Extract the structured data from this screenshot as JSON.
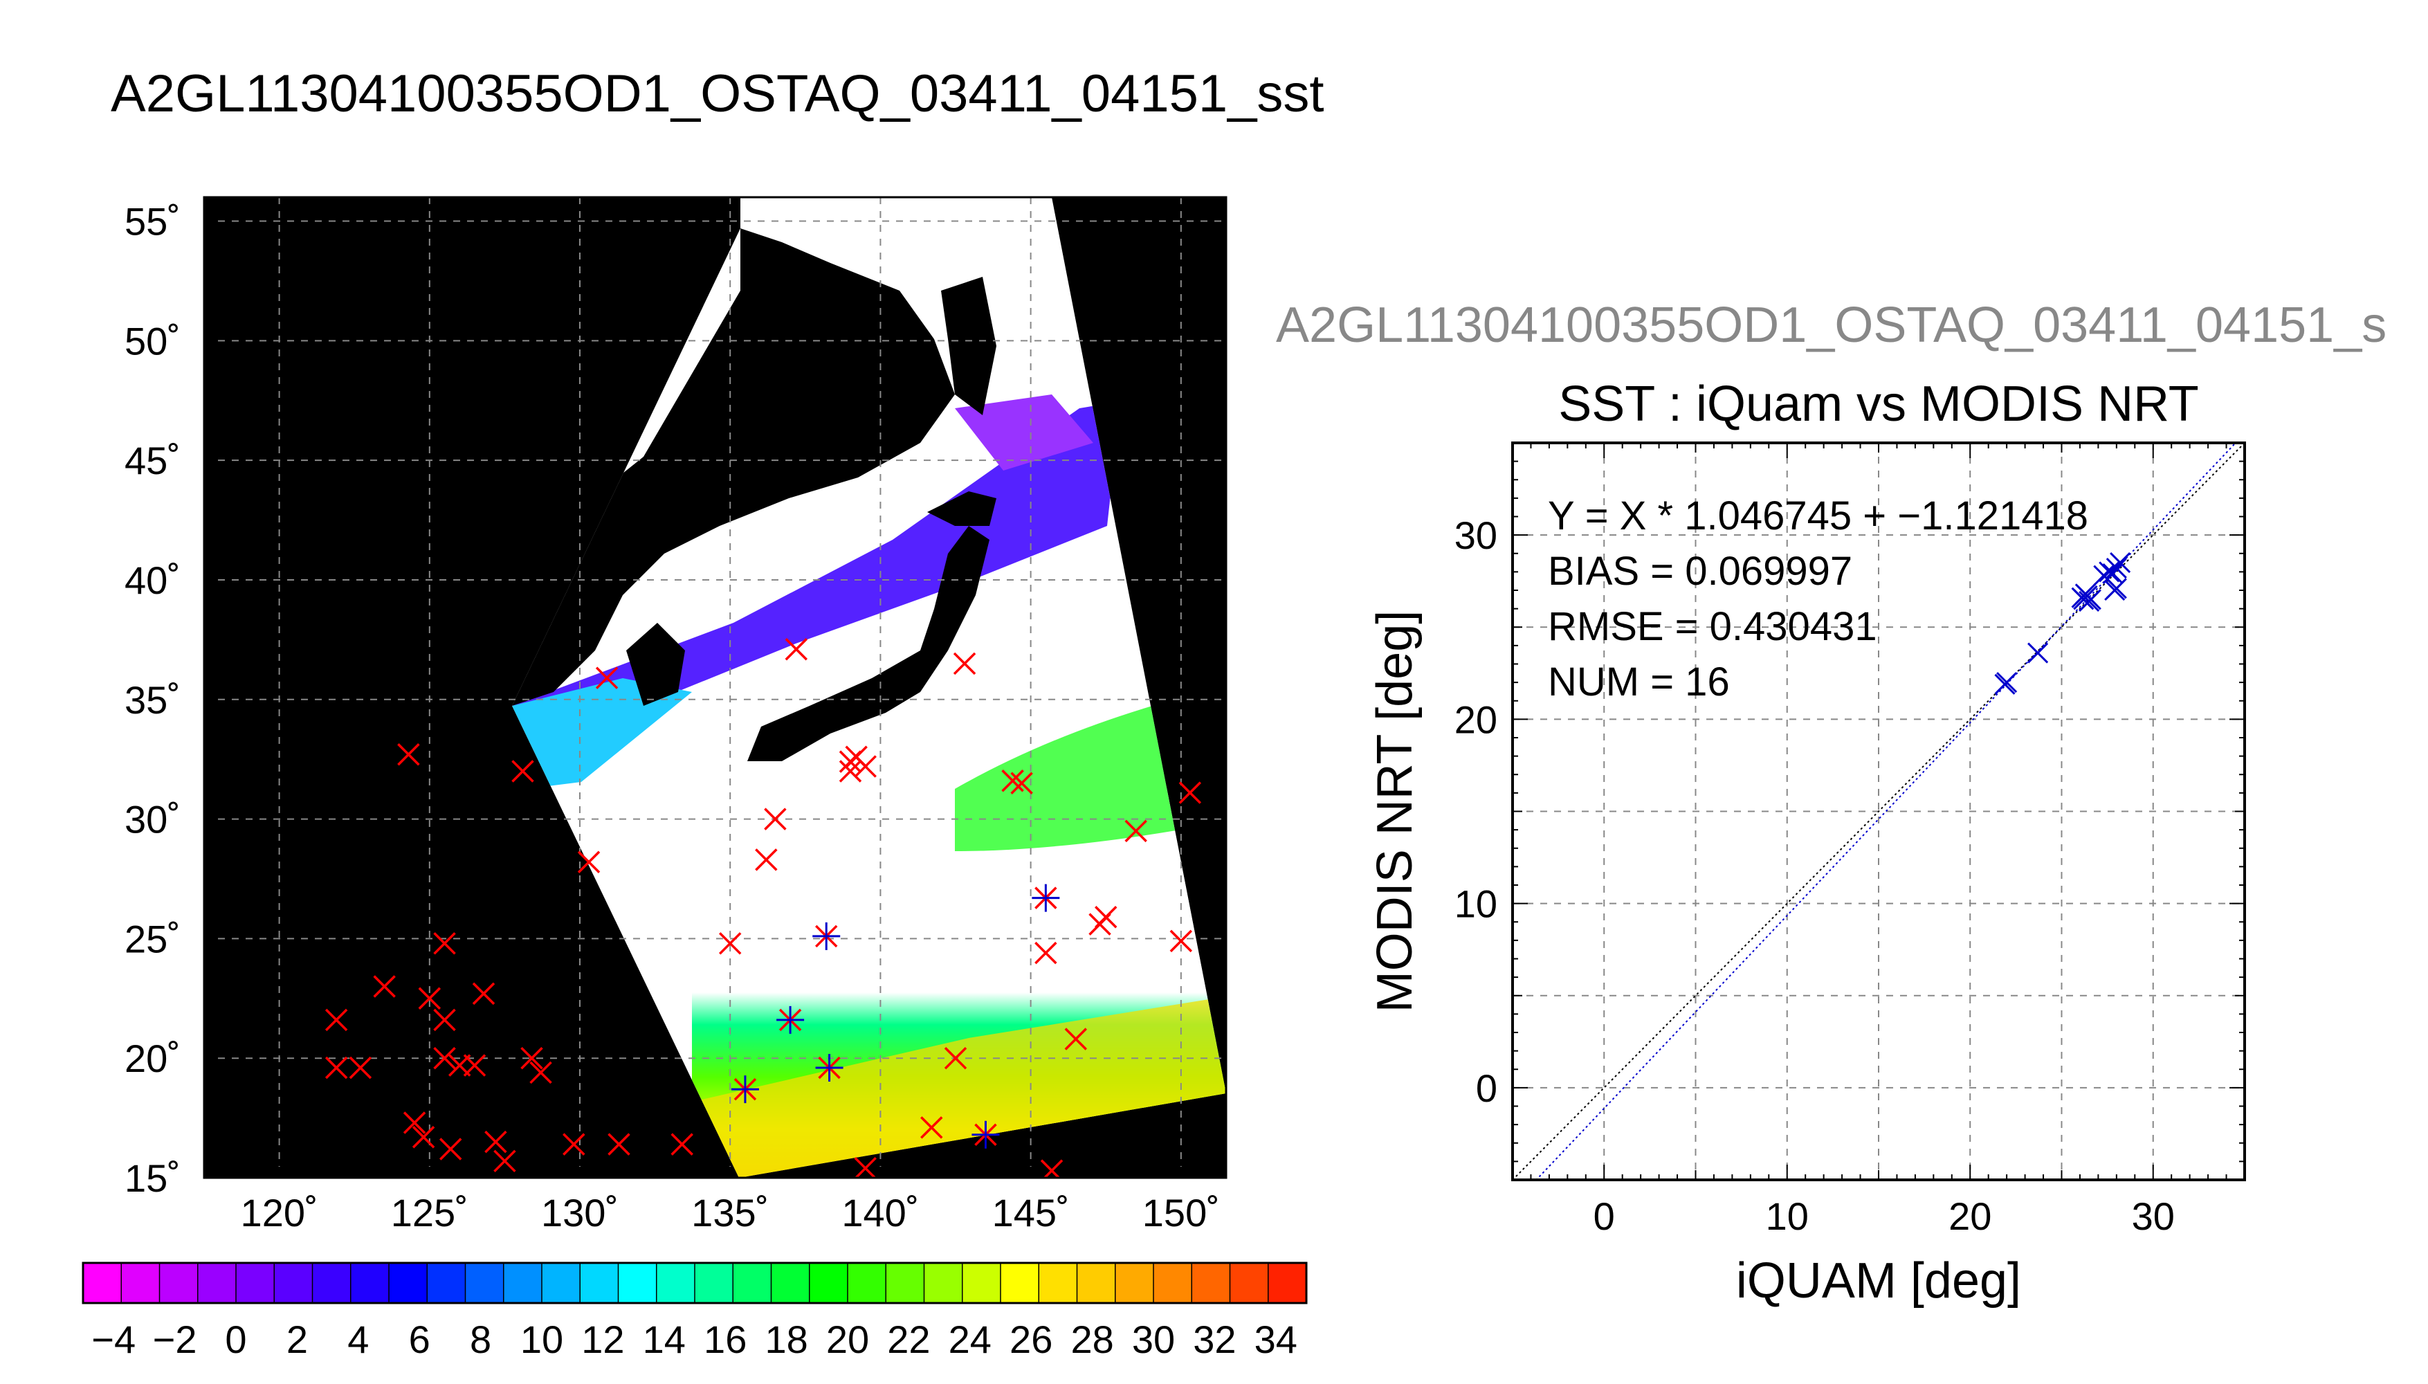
{
  "page_title": "A2GL11304100355OD1_OSTAQ_03411_04151_sst",
  "colors": {
    "match_marker": "#ff0000",
    "qc_marker": "#0000cc",
    "fit_line": "#0000cc",
    "one_to_one_line": "#000000"
  },
  "chart_data": [
    {
      "type": "map",
      "name": "sst-swath-map",
      "lon_ticks": [
        "120˚",
        "125˚",
        "130˚",
        "135˚",
        "140˚",
        "145˚",
        "150˚"
      ],
      "lat_ticks": [
        "15˚",
        "20˚",
        "25˚",
        "30˚",
        "35˚",
        "40˚",
        "45˚",
        "50˚",
        "55˚"
      ],
      "xlim": [
        117.5,
        151.5
      ],
      "ylim": [
        15,
        56
      ],
      "grid": true,
      "background": "black",
      "match_points": [
        [
          121.9,
          21.6
        ],
        [
          121.9,
          19.6
        ],
        [
          122.7,
          19.6
        ],
        [
          123.5,
          23.0
        ],
        [
          124.3,
          32.7
        ],
        [
          124.5,
          17.3
        ],
        [
          124.8,
          16.7
        ],
        [
          125.0,
          22.5
        ],
        [
          125.5,
          24.8
        ],
        [
          125.5,
          21.6
        ],
        [
          125.5,
          20.0
        ],
        [
          125.7,
          16.2
        ],
        [
          126.0,
          19.7
        ],
        [
          126.5,
          19.7
        ],
        [
          126.8,
          22.7
        ],
        [
          127.2,
          16.5
        ],
        [
          127.5,
          15.7
        ],
        [
          128.1,
          32.0
        ],
        [
          128.4,
          20.0
        ],
        [
          128.7,
          19.4
        ],
        [
          129.8,
          16.4
        ],
        [
          130.3,
          28.2
        ],
        [
          130.9,
          35.9
        ],
        [
          131.3,
          16.4
        ],
        [
          133.4,
          16.4
        ],
        [
          135.0,
          24.8
        ],
        [
          135.5,
          18.7
        ],
        [
          136.2,
          28.3
        ],
        [
          136.5,
          30.0
        ],
        [
          137.0,
          21.6
        ],
        [
          137.2,
          37.1
        ],
        [
          138.2,
          25.1
        ],
        [
          138.3,
          19.6
        ],
        [
          139.0,
          32.4
        ],
        [
          139.0,
          32.0
        ],
        [
          139.2,
          32.6
        ],
        [
          139.5,
          32.2
        ],
        [
          139.5,
          15.4
        ],
        [
          141.7,
          17.1
        ],
        [
          142.5,
          20.0
        ],
        [
          142.8,
          36.5
        ],
        [
          143.5,
          16.8
        ],
        [
          144.4,
          31.6
        ],
        [
          144.7,
          31.5
        ],
        [
          145.5,
          26.7
        ],
        [
          145.5,
          24.4
        ],
        [
          145.7,
          15.3
        ],
        [
          146.5,
          20.8
        ],
        [
          147.3,
          25.6
        ],
        [
          147.5,
          25.9
        ],
        [
          148.5,
          29.5
        ],
        [
          150.0,
          24.9
        ],
        [
          150.3,
          31.1
        ]
      ],
      "qc_points": [
        [
          135.5,
          18.7
        ],
        [
          137.0,
          21.6
        ],
        [
          138.2,
          25.1
        ],
        [
          138.3,
          19.6
        ],
        [
          143.5,
          16.8
        ],
        [
          145.5,
          26.7
        ]
      ]
    },
    {
      "type": "colorbar",
      "name": "sst-colorbar",
      "tick_labels": [
        "−4",
        "−2",
        "0",
        "2",
        "4",
        "6",
        "8",
        "10",
        "12",
        "14",
        "16",
        "18",
        "20",
        "22",
        "24",
        "26",
        "28",
        "30",
        "32",
        "34"
      ],
      "range": [
        -5,
        35
      ],
      "colors": [
        "#ff00ff",
        "#e000ff",
        "#bb00ff",
        "#9a00ff",
        "#7a00ff",
        "#5a00ff",
        "#3a00ff",
        "#2000ff",
        "#0000ff",
        "#0030ff",
        "#0060ff",
        "#0090ff",
        "#00b4ff",
        "#00d8ff",
        "#00ffff",
        "#00ffcc",
        "#00ff99",
        "#00ff66",
        "#00ff33",
        "#00ff00",
        "#33ff00",
        "#66ff00",
        "#99ff00",
        "#ccff00",
        "#ffff00",
        "#ffe000",
        "#ffcc00",
        "#ffaa00",
        "#ff8800",
        "#ff6600",
        "#ff4400",
        "#ff2200"
      ]
    },
    {
      "type": "scatter",
      "name": "sst-scatter",
      "super_title": "A2GL11304100355OD1_OSTAQ_03411_04151_s",
      "title": "SST : iQuam vs MODIS NRT",
      "xlabel": "iQUAM [deg]",
      "ylabel": "MODIS NRT [deg]",
      "xlim": [
        -5,
        35
      ],
      "ylim": [
        -5,
        35
      ],
      "xticks": [
        "0",
        "10",
        "20",
        "30"
      ],
      "yticks": [
        "0",
        "10",
        "20",
        "30"
      ],
      "grid": true,
      "stats": [
        "Y = X * 1.046745 + −1.121418",
        "BIAS = 0.069997",
        "RMSE = 0.430431",
        "NUM = 16"
      ],
      "points": [
        [
          21.9,
          21.9
        ],
        [
          22.0,
          22.0
        ],
        [
          23.7,
          23.6
        ],
        [
          26.1,
          26.6
        ],
        [
          26.2,
          26.5
        ],
        [
          26.4,
          26.7
        ],
        [
          26.5,
          26.4
        ],
        [
          27.3,
          27.8
        ],
        [
          27.6,
          28.0
        ],
        [
          27.8,
          27.9
        ],
        [
          28.0,
          28.2
        ],
        [
          28.2,
          28.5
        ],
        [
          27.9,
          27.0
        ],
        [
          28.0,
          27.1
        ],
        [
          26.3,
          26.8
        ],
        [
          26.6,
          26.5
        ]
      ],
      "fit": {
        "slope": 1.046745,
        "intercept": -1.121418
      }
    }
  ]
}
